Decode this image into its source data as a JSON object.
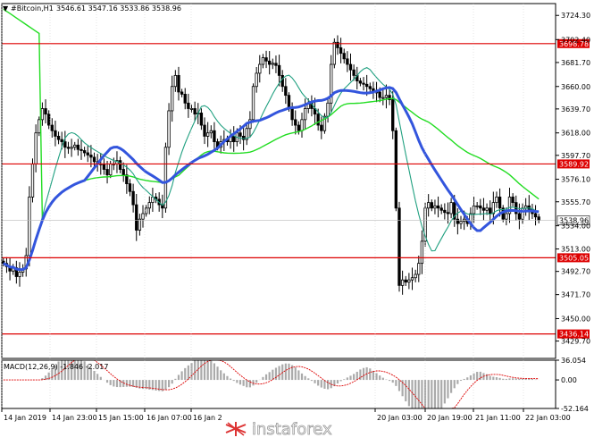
{
  "header": {
    "symbol": "#Bitcoin,H1",
    "ohlc": "3546.61 3547.16 3533.86 3538.96"
  },
  "watermark": {
    "text": "instaforex",
    "icon": "instaforex-logo-icon"
  },
  "colors": {
    "candle": "#000000",
    "ma_fast": "#20a080",
    "ma_mid": "#3355dd",
    "ma_slow": "#22dd22",
    "level": "#dd0000",
    "macd_hist": "#aaaaaa",
    "macd_signal": "#dd0000"
  },
  "chart_data": [
    {
      "type": "candlestick",
      "title": "#Bitcoin,H1",
      "ylim": [
        3414,
        3735
      ],
      "y_ticks": [
        "3724.30",
        "3702.40",
        "3681.70",
        "3660.00",
        "3639.70",
        "3618.00",
        "3597.70",
        "3576.10",
        "3555.70",
        "3534.00",
        "3513.00",
        "3492.70",
        "3471.70",
        "3450.00",
        "3429.70"
      ],
      "x_ticks": [
        "14 Jan 2019",
        "14 Jan 23:00",
        "15 Jan 15:00",
        "16 Jan 07:00",
        "16 Jan 2",
        "20 Jan 03:00",
        "20 Jan 19:00",
        "21 Jan 11:00",
        "22 Jan 03:00"
      ],
      "current_price": "3538.96",
      "levels": [
        {
          "label": "3698.78",
          "value": 3698.78
        },
        {
          "label": "3589.92",
          "value": 3589.92
        },
        {
          "label": "3505.05",
          "value": 3505.05
        },
        {
          "label": "3436.14",
          "value": 3436.14
        }
      ],
      "series_close": [
        3500,
        3497,
        3493,
        3496,
        3488,
        3492,
        3495,
        3507,
        3560,
        3590,
        3618,
        3630,
        3640,
        3635,
        3625,
        3620,
        3615,
        3612,
        3610,
        3605,
        3604,
        3605,
        3607,
        3603,
        3602,
        3600,
        3598,
        3596,
        3592,
        3590,
        3590,
        3585,
        3580,
        3590,
        3590,
        3593,
        3585,
        3580,
        3572,
        3565,
        3553,
        3530,
        3540,
        3545,
        3550,
        3555,
        3560,
        3558,
        3553,
        3550,
        3605,
        3638,
        3660,
        3670,
        3655,
        3653,
        3645,
        3640,
        3640,
        3635,
        3636,
        3625,
        3615,
        3618,
        3620,
        3610,
        3605,
        3610,
        3612,
        3610,
        3615,
        3610,
        3618,
        3615,
        3612,
        3622,
        3630,
        3660,
        3672,
        3680,
        3686,
        3683,
        3680,
        3681,
        3679,
        3670,
        3660,
        3652,
        3640,
        3630,
        3625,
        3620,
        3630,
        3640,
        3645,
        3640,
        3635,
        3625,
        3620,
        3633,
        3645,
        3680,
        3700,
        3695,
        3690,
        3685,
        3680,
        3675,
        3670,
        3665,
        3663,
        3662,
        3660,
        3658,
        3655,
        3655,
        3650,
        3650,
        3652,
        3648,
        3620,
        3550,
        3480,
        3485,
        3483,
        3485,
        3487,
        3490,
        3500,
        3520,
        3550,
        3555,
        3550,
        3552,
        3550,
        3548,
        3546,
        3545,
        3555,
        3540,
        3536,
        3538,
        3540,
        3536,
        3545,
        3552,
        3552,
        3550,
        3548,
        3550,
        3545,
        3555,
        3560,
        3550,
        3540,
        3545,
        3560,
        3555,
        3545,
        3540,
        3550,
        3552,
        3549,
        3545,
        3542,
        3539
      ]
    },
    {
      "type": "histogram",
      "title": "MACD(12,26,9) -1.846 -2.017",
      "name": "MACD(12,26,9)",
      "values_text": "-1.846 -2.017",
      "y_ticks": [
        "36.054",
        "0.00",
        "-52.164"
      ],
      "ylim": [
        -52.164,
        36.054
      ]
    }
  ]
}
